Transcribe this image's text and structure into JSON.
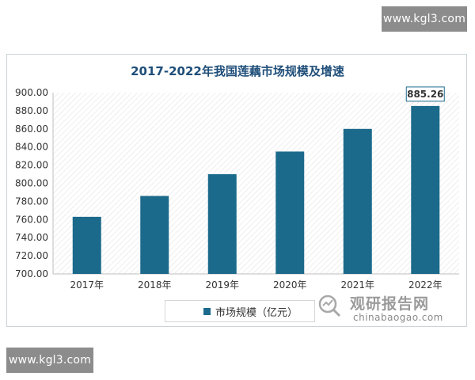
{
  "watermark": {
    "top_text": "www.kgl3.com",
    "bottom_text": "www.kgl3.com"
  },
  "brand": {
    "name_cn": "观研报告网",
    "name_en": "chinabaogao.com"
  },
  "colors": {
    "bar": "#1b6a8c",
    "title": "#1f4e79",
    "watermark_bg": "#8c8c8c"
  },
  "chart_data": {
    "type": "bar",
    "title": "2017-2022年我国莲藕市场规模及增速",
    "categories": [
      "2017年",
      "2018年",
      "2019年",
      "2020年",
      "2021年",
      "2022年"
    ],
    "series": [
      {
        "name": "市场规模（亿元）",
        "values": [
          763,
          786,
          810,
          835,
          860,
          885.26
        ]
      }
    ],
    "ylim": [
      700,
      900
    ],
    "yticks": [
      "700.00",
      "720.00",
      "740.00",
      "760.00",
      "780.00",
      "800.00",
      "820.00",
      "840.00",
      "860.00",
      "880.00",
      "900.00"
    ],
    "data_labels": [
      {
        "category": "2022年",
        "text": "885.26"
      }
    ],
    "grid": true,
    "plot_background": "hatched",
    "legend": "bottom"
  }
}
